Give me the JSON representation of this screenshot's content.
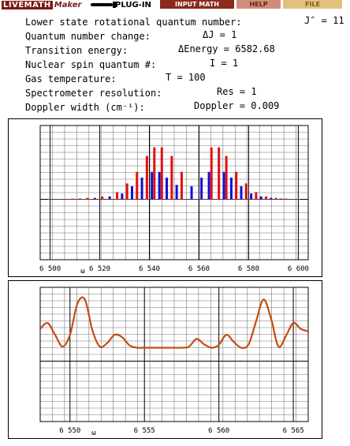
{
  "toolbar": {
    "logo_live": "LIVEMATH",
    "logo_maker": "Maker",
    "plugin_label": "PLUG-IN",
    "input_math_label": "INPUT MATH",
    "help_label": "HELP",
    "file_label": "FILE"
  },
  "parameters": {
    "j_value": "J″ = 11",
    "rot_label": "Lower state rotational quantum number:",
    "qn_change_label": "Quantum number change:",
    "qn_change_value": "ΔJ = 1",
    "transition_label": "Transition energy:",
    "transition_value": "ΔEnergy = 6582.68",
    "spin_label": "Nuclear spin quantum #:",
    "spin_value": "I = 1",
    "temp_label": "Gas temperature:",
    "temp_value": "T = 100",
    "resolution_label": "Spectrometer resolution:",
    "resolution_value": "Res = 1",
    "doppler_label": "Doppler width (cm⁻¹):",
    "doppler_value": "Doppler = 0.009"
  },
  "colors": {
    "red_lines": "#e01010",
    "blue_lines": "#1010d0",
    "convolved": "#c84a10",
    "grid": "#555555"
  },
  "chart_data": [
    {
      "type": "bar",
      "xlim": [
        6496,
        6604
      ],
      "ylim": [
        0,
        1
      ],
      "xlabel": "ω",
      "x_ticks": [
        "6 500",
        "6 520",
        "6 540",
        "6 560",
        "6 580",
        "6 600"
      ],
      "x_tick_values": [
        6500,
        6520,
        6540,
        6560,
        6580,
        6600
      ],
      "series": [
        {
          "color": "red",
          "x": [
            6509,
            6515,
            6521,
            6527,
            6531,
            6535,
            6539,
            6542,
            6545,
            6549,
            6553,
            6565,
            6568,
            6571,
            6575,
            6579,
            6583,
            6587,
            6591,
            6595
          ],
          "values": [
            0.01,
            0.02,
            0.04,
            0.1,
            0.22,
            0.38,
            0.6,
            0.72,
            0.72,
            0.6,
            0.38,
            0.72,
            0.72,
            0.6,
            0.38,
            0.22,
            0.1,
            0.04,
            0.02,
            0.01
          ]
        },
        {
          "color": "blue",
          "x": [
            6512,
            6518,
            6524,
            6529,
            6533,
            6537,
            6541,
            6544,
            6547,
            6551,
            6557,
            6561,
            6564,
            6570,
            6573,
            6577,
            6581,
            6585,
            6589,
            6593
          ],
          "values": [
            0.01,
            0.02,
            0.04,
            0.08,
            0.18,
            0.3,
            0.38,
            0.38,
            0.3,
            0.2,
            0.18,
            0.3,
            0.38,
            0.38,
            0.3,
            0.18,
            0.08,
            0.04,
            0.02,
            0.01
          ]
        }
      ]
    },
    {
      "type": "line",
      "xlim": [
        6548,
        6566
      ],
      "ylim": [
        0,
        1
      ],
      "xlabel": "ω",
      "x_ticks": [
        "6 550",
        "6 555",
        "6 560",
        "6 565"
      ],
      "x_tick_values": [
        6550,
        6555,
        6560,
        6565
      ],
      "series": [
        {
          "color": "orange-brown",
          "x": [
            6548.0,
            6548.5,
            6549.0,
            6549.5,
            6550.0,
            6550.5,
            6551.0,
            6551.5,
            6552.0,
            6552.5,
            6553.0,
            6553.5,
            6554.0,
            6554.5,
            6555.0,
            6555.5,
            6556.0,
            6556.5,
            6557.0,
            6557.5,
            6558.0,
            6558.5,
            6559.0,
            6559.5,
            6560.0,
            6560.5,
            6561.0,
            6561.5,
            6562.0,
            6562.5,
            6563.0,
            6563.5,
            6564.0,
            6564.5,
            6565.0,
            6565.5,
            6566.0
          ],
          "values": [
            0.32,
            0.42,
            0.22,
            0.02,
            0.22,
            0.75,
            0.82,
            0.3,
            0.02,
            0.08,
            0.22,
            0.18,
            0.04,
            0.0,
            0.0,
            0.0,
            0.0,
            0.0,
            0.0,
            0.0,
            0.02,
            0.15,
            0.06,
            0.0,
            0.05,
            0.22,
            0.1,
            0.0,
            0.06,
            0.45,
            0.82,
            0.5,
            0.02,
            0.2,
            0.42,
            0.32,
            0.28
          ]
        }
      ]
    }
  ]
}
